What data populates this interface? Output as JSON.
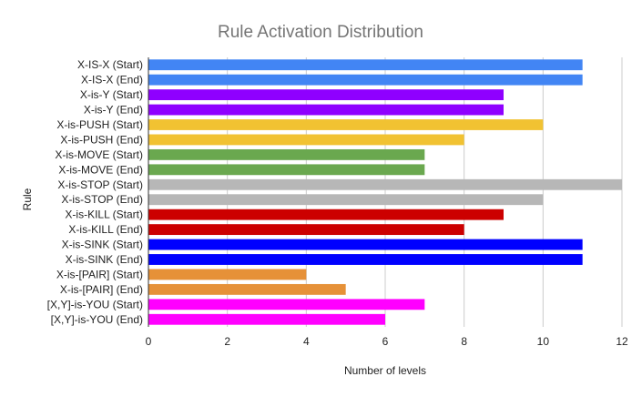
{
  "chart_data": {
    "type": "bar",
    "orientation": "horizontal",
    "title": "Rule Activation Distribution",
    "xlabel": "Number of levels",
    "ylabel": "Rule",
    "xlim": [
      0,
      12
    ],
    "xticks": [
      0,
      2,
      4,
      6,
      8,
      10,
      12
    ],
    "grid": true,
    "legend": "none",
    "categories": [
      "X-IS-X (Start)",
      "X-IS-X (End)",
      "X-is-Y (Start)",
      "X-is-Y (End)",
      "X-is-PUSH (Start)",
      "X-is-PUSH (End)",
      "X-is-MOVE (Start)",
      "X-is-MOVE (End)",
      "X-is-STOP (Start)",
      "X-is-STOP (End)",
      "X-is-KILL (Start)",
      "X-is-KILL (End)",
      "X-is-SINK (Start)",
      "X-is-SINK (End)",
      "X-is-[PAIR] (Start)",
      "X-is-[PAIR] (End)",
      "[X,Y]-is-YOU (Start)",
      "[X,Y]-is-YOU (End)"
    ],
    "values": [
      11,
      11,
      9,
      9,
      10,
      8,
      7,
      7,
      12,
      10,
      9,
      8,
      11,
      11,
      4,
      5,
      7,
      6
    ],
    "colors": [
      "#4285f4",
      "#4285f4",
      "#8f00ff",
      "#8f00ff",
      "#f1c232",
      "#f1c232",
      "#6aa84f",
      "#6aa84f",
      "#b7b7b7",
      "#b7b7b7",
      "#cc0000",
      "#cc0000",
      "#0000ff",
      "#0000ff",
      "#e69138",
      "#e69138",
      "#ff00ff",
      "#ff00ff"
    ]
  }
}
